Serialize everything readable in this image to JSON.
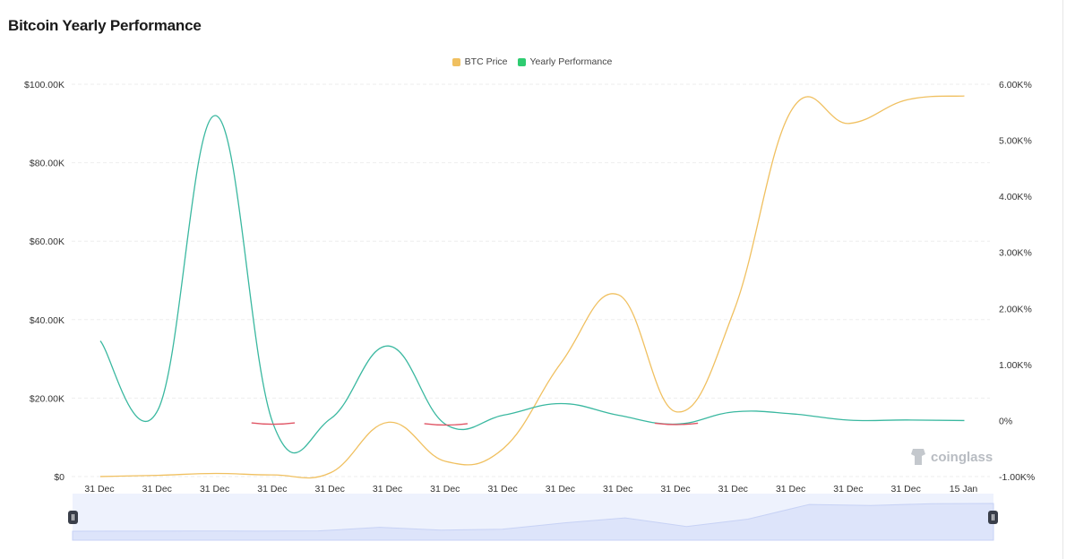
{
  "page": {
    "title": "Bitcoin Yearly Performance",
    "watermark": "coinglass"
  },
  "colors": {
    "btc_price": "#f0c060",
    "yearly_performance_positive": "#3ab8a0",
    "yearly_performance_negative": "#e05565",
    "legend_yearly": "#2ecc71",
    "grid": "#eeeeee",
    "navigator_fill": "#dde4fa",
    "navigator_bg": "#eef2fd"
  },
  "chart_data": {
    "type": "line",
    "title": "Bitcoin Yearly Performance",
    "legend": [
      "BTC Price",
      "Yearly Performance"
    ],
    "legend_position": "top-center",
    "grid": true,
    "categories": [
      "31 Dec",
      "31 Dec",
      "31 Dec",
      "31 Dec",
      "31 Dec",
      "31 Dec",
      "31 Dec",
      "31 Dec",
      "31 Dec",
      "31 Dec",
      "31 Dec",
      "31 Dec",
      "31 Dec",
      "31 Dec",
      "31 Dec",
      "15 Jan"
    ],
    "y_left": {
      "label": "BTC Price",
      "ylim": [
        0,
        100000
      ],
      "ticks": [
        "$0",
        "$20.00K",
        "$40.00K",
        "$60.00K",
        "$80.00K",
        "$100.00K"
      ]
    },
    "y_right": {
      "label": "Yearly Performance",
      "ylim": [
        -1000,
        6000
      ],
      "ticks": [
        "-1.00K%",
        "0%",
        "1.00K%",
        "2.00K%",
        "3.00K%",
        "4.00K%",
        "5.00K%",
        "6.00K%"
      ]
    },
    "series": [
      {
        "name": "BTC Price",
        "axis": "left",
        "values": [
          13,
          314,
          805,
          430,
          998,
          13850,
          3843,
          7200,
          29000,
          46300,
          16500,
          42300,
          93400,
          90000,
          96000,
          97000
        ]
      },
      {
        "name": "Yearly Performance",
        "axis": "right",
        "values": [
          1420,
          190,
          5440,
          -58,
          35,
          1330,
          -72,
          96,
          303,
          92,
          -64,
          155,
          120,
          7,
          10,
          0
        ]
      }
    ]
  }
}
